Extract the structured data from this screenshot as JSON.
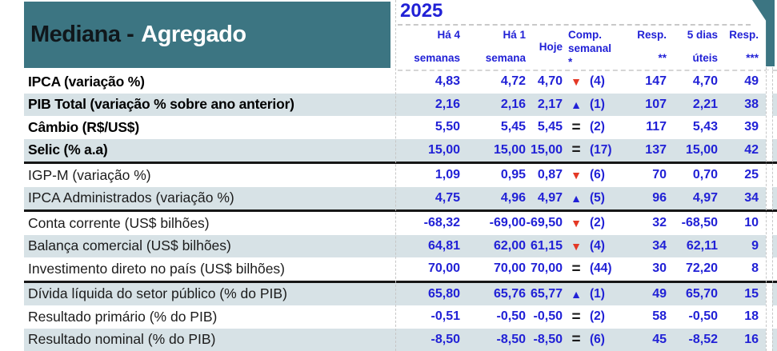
{
  "title": {
    "text_dark": "Mediana -",
    "text_light": "Agregado"
  },
  "section": {
    "year": "2025"
  },
  "columns": {
    "ha4": {
      "l1": "Há 4",
      "l2": "semanas"
    },
    "ha1": {
      "l1": "Há 1",
      "l2": "semana"
    },
    "hoje": {
      "l1": "Hoje"
    },
    "comp": {
      "l1": "Comp.",
      "l2": "semanal *"
    },
    "resp2": {
      "l1": "Resp.",
      "l2": "**"
    },
    "dias5": {
      "l1": "5 dias",
      "l2": "úteis"
    },
    "resp3": {
      "l1": "Resp.",
      "l2": "***"
    }
  },
  "colors": {
    "teal": "#3C7582",
    "row_stripe": "#D7E2E6",
    "value_blue": "#2121D6",
    "arrow_red": "#E43825",
    "separator_black": "#161616"
  },
  "table": {
    "rows": [
      {
        "label": "IPCA (variação %)",
        "ha4": "4,83",
        "ha1": "4,72",
        "hoje": "4,70",
        "arrow": "down",
        "arrow_glyph": "▼",
        "comp": "(4)",
        "resp2": "147",
        "dias5": "4,70",
        "resp3": "49",
        "bold": true,
        "sep_after": false
      },
      {
        "label": "PIB Total (variação % sobre ano anterior)",
        "ha4": "2,16",
        "ha1": "2,16",
        "hoje": "2,17",
        "arrow": "up",
        "arrow_glyph": "▲",
        "comp": "(1)",
        "resp2": "107",
        "dias5": "2,21",
        "resp3": "38",
        "bold": true,
        "sep_after": false
      },
      {
        "label": "Câmbio (R$/US$)",
        "ha4": "5,50",
        "ha1": "5,45",
        "hoje": "5,45",
        "arrow": "eq",
        "arrow_glyph": "=",
        "comp": "(2)",
        "resp2": "117",
        "dias5": "5,43",
        "resp3": "39",
        "bold": true,
        "sep_after": false
      },
      {
        "label": "Selic (% a.a)",
        "ha4": "15,00",
        "ha1": "15,00",
        "hoje": "15,00",
        "arrow": "eq",
        "arrow_glyph": "=",
        "comp": "(17)",
        "resp2": "137",
        "dias5": "15,00",
        "resp3": "42",
        "bold": true,
        "sep_after": true
      },
      {
        "label": "IGP-M (variação %)",
        "ha4": "1,09",
        "ha1": "0,95",
        "hoje": "0,87",
        "arrow": "down",
        "arrow_glyph": "▼",
        "comp": "(6)",
        "resp2": "70",
        "dias5": "0,70",
        "resp3": "25",
        "bold": false,
        "sep_after": false
      },
      {
        "label": "IPCA Administrados (variação %)",
        "ha4": "4,75",
        "ha1": "4,96",
        "hoje": "4,97",
        "arrow": "up",
        "arrow_glyph": "▲",
        "comp": "(5)",
        "resp2": "96",
        "dias5": "4,97",
        "resp3": "34",
        "bold": false,
        "sep_after": true
      },
      {
        "label": "Conta corrente (US$ bilhões)",
        "ha4": "-68,32",
        "ha1": "-69,00",
        "hoje": "-69,50",
        "arrow": "down",
        "arrow_glyph": "▼",
        "comp": "(2)",
        "resp2": "32",
        "dias5": "-68,50",
        "resp3": "10",
        "bold": false,
        "sep_after": false
      },
      {
        "label": "Balança comercial (US$ bilhões)",
        "ha4": "64,81",
        "ha1": "62,00",
        "hoje": "61,15",
        "arrow": "down",
        "arrow_glyph": "▼",
        "comp": "(4)",
        "resp2": "34",
        "dias5": "62,11",
        "resp3": "9",
        "bold": false,
        "sep_after": false
      },
      {
        "label": "Investimento direto no país (US$ bilhões)",
        "ha4": "70,00",
        "ha1": "70,00",
        "hoje": "70,00",
        "arrow": "eq",
        "arrow_glyph": "=",
        "comp": "(44)",
        "resp2": "30",
        "dias5": "72,20",
        "resp3": "8",
        "bold": false,
        "sep_after": true
      },
      {
        "label": "Dívida líquida do setor público (% do PIB)",
        "ha4": "65,80",
        "ha1": "65,76",
        "hoje": "65,77",
        "arrow": "up",
        "arrow_glyph": "▲",
        "comp": "(1)",
        "resp2": "49",
        "dias5": "65,70",
        "resp3": "15",
        "bold": false,
        "sep_after": false
      },
      {
        "label": "Resultado primário (% do PIB)",
        "ha4": "-0,51",
        "ha1": "-0,50",
        "hoje": "-0,50",
        "arrow": "eq",
        "arrow_glyph": "=",
        "comp": "(2)",
        "resp2": "58",
        "dias5": "-0,50",
        "resp3": "18",
        "bold": false,
        "sep_after": false
      },
      {
        "label": "Resultado nominal (% do PIB)",
        "ha4": "-8,50",
        "ha1": "-8,50",
        "hoje": "-8,50",
        "arrow": "eq",
        "arrow_glyph": "=",
        "comp": "(6)",
        "resp2": "45",
        "dias5": "-8,52",
        "resp3": "16",
        "bold": false,
        "sep_after": false
      }
    ]
  }
}
